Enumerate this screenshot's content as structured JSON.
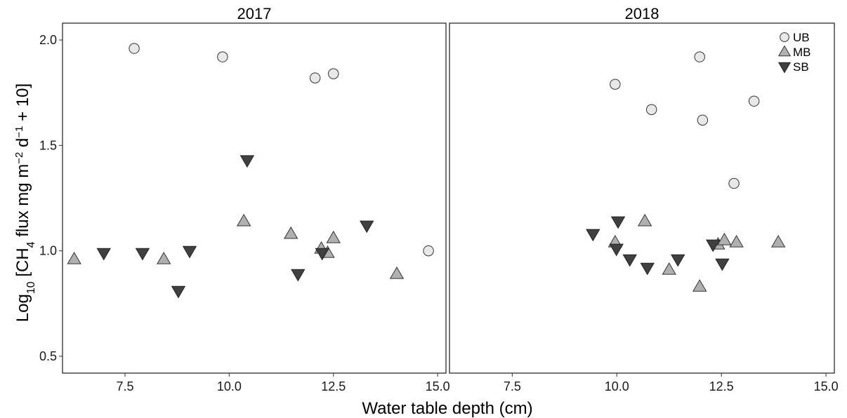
{
  "chart_data": {
    "type": "scatter",
    "ylabel": "Log10 [CH4 flux mg m-2 d-1 + 10]",
    "xlabel": "Water table depth (cm)",
    "xlim": [
      6.0,
      15.2
    ],
    "ylim": [
      0.42,
      2.08
    ],
    "x_ticks": [
      7.5,
      10.0,
      12.5,
      15.0
    ],
    "x_tick_labels": [
      "7.5",
      "10.0",
      "12.5",
      "15.0"
    ],
    "y_ticks": [
      0.5,
      1.0,
      1.5,
      2.0
    ],
    "y_tick_labels": [
      "0.5",
      "1.0",
      "1.5",
      "2.0"
    ],
    "grid": false,
    "legend": {
      "placement": "top-right",
      "entries": [
        {
          "name": "UB",
          "marker": "circle",
          "color": "#e8e8e8"
        },
        {
          "name": "MB",
          "marker": "triangle-up",
          "color": "#b0b0b0"
        },
        {
          "name": "SB",
          "marker": "triangle-down",
          "color": "#404040"
        }
      ]
    },
    "panels": [
      {
        "title": "2017",
        "series": [
          {
            "name": "UB",
            "points": [
              [
                7.72,
                1.96
              ],
              [
                9.84,
                1.92
              ],
              [
                12.06,
                1.82
              ],
              [
                12.5,
                1.84
              ],
              [
                14.78,
                1.0
              ]
            ]
          },
          {
            "name": "MB",
            "points": [
              [
                6.28,
                0.96
              ],
              [
                8.43,
                0.96
              ],
              [
                10.35,
                1.14
              ],
              [
                11.48,
                1.08
              ],
              [
                12.21,
                1.01
              ],
              [
                12.36,
                0.99
              ],
              [
                12.5,
                1.06
              ],
              [
                14.02,
                0.89
              ]
            ]
          },
          {
            "name": "SB",
            "points": [
              [
                6.99,
                0.99
              ],
              [
                7.92,
                0.99
              ],
              [
                8.78,
                0.81
              ],
              [
                9.05,
                1.0
              ],
              [
                10.43,
                1.43
              ],
              [
                11.65,
                0.89
              ],
              [
                12.23,
                0.99
              ],
              [
                13.3,
                1.12
              ]
            ]
          }
        ]
      },
      {
        "title": "2018",
        "series": [
          {
            "name": "UB",
            "points": [
              [
                9.96,
                1.79
              ],
              [
                10.83,
                1.67
              ],
              [
                11.98,
                1.92
              ],
              [
                12.05,
                1.62
              ],
              [
                12.8,
                1.32
              ],
              [
                13.28,
                1.71
              ]
            ]
          },
          {
            "name": "MB",
            "points": [
              [
                9.96,
                1.04
              ],
              [
                10.67,
                1.14
              ],
              [
                11.25,
                0.91
              ],
              [
                11.98,
                0.83
              ],
              [
                12.42,
                1.03
              ],
              [
                12.57,
                1.05
              ],
              [
                12.86,
                1.04
              ],
              [
                13.86,
                1.04
              ]
            ]
          },
          {
            "name": "SB",
            "points": [
              [
                9.43,
                1.08
              ],
              [
                9.99,
                1.01
              ],
              [
                10.03,
                1.14
              ],
              [
                10.31,
                0.96
              ],
              [
                10.73,
                0.92
              ],
              [
                11.46,
                0.96
              ],
              [
                12.3,
                1.03
              ],
              [
                12.52,
                0.94
              ]
            ]
          }
        ]
      }
    ]
  }
}
